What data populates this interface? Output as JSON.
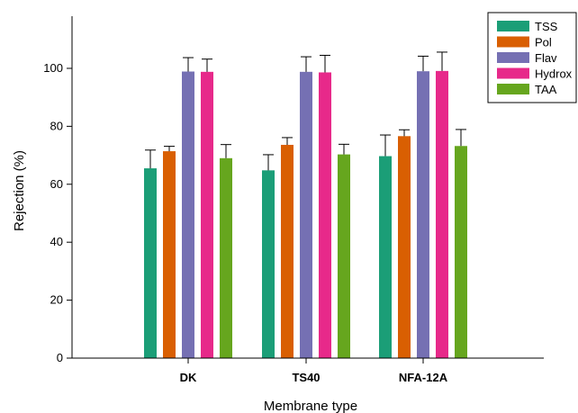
{
  "chart_data": {
    "type": "bar",
    "xlabel": "Membrane type",
    "ylabel": "Rejection (%)",
    "ylim": [
      0,
      118
    ],
    "yticks": [
      0,
      20,
      40,
      60,
      80,
      100
    ],
    "categories": [
      "DK",
      "TS40",
      "NFA-12A"
    ],
    "series": [
      {
        "name": "TSS",
        "color": "#1b9e77",
        "values": [
          65.5,
          64.8,
          69.7
        ],
        "errors": [
          6.3,
          5.4,
          7.3
        ]
      },
      {
        "name": "Pol",
        "color": "#d95f02",
        "values": [
          71.4,
          73.6,
          76.6
        ],
        "errors": [
          1.7,
          2.5,
          2.2
        ]
      },
      {
        "name": "Flav",
        "color": "#7570b3",
        "values": [
          98.9,
          98.8,
          99.0
        ],
        "errors": [
          4.8,
          5.2,
          5.2
        ]
      },
      {
        "name": "Hydrox",
        "color": "#e7298a",
        "values": [
          98.8,
          98.6,
          99.1
        ],
        "errors": [
          4.4,
          5.9,
          6.5
        ]
      },
      {
        "name": "TAA",
        "color": "#66a61e",
        "values": [
          69.0,
          70.3,
          73.2
        ],
        "errors": [
          4.7,
          3.5,
          5.7
        ]
      }
    ],
    "legend_position": "top-right",
    "grid": false
  }
}
